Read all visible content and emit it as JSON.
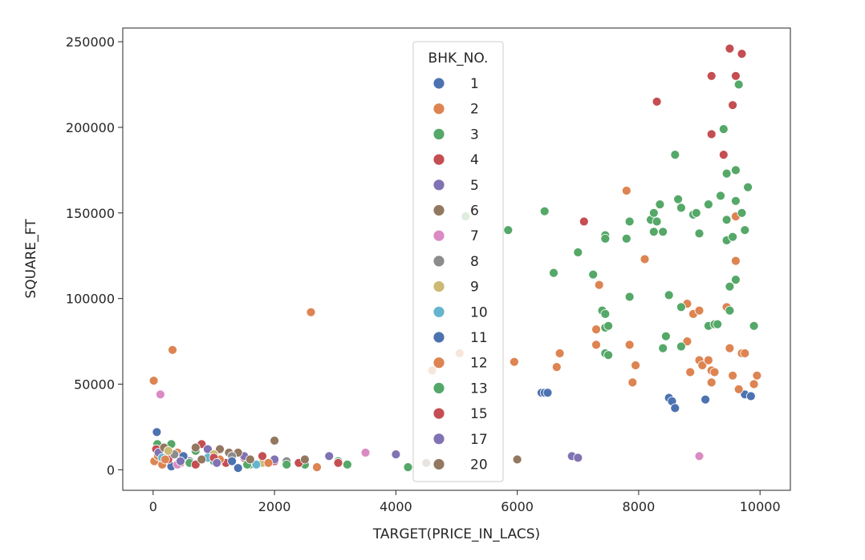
{
  "chart_data": {
    "type": "scatter",
    "xlabel": "TARGET(PRICE_IN_LACS)",
    "ylabel": "SQUARE_FT",
    "xlim": [
      -500,
      10500
    ],
    "ylim": [
      -12000,
      258000
    ],
    "xticks": [
      0,
      2000,
      4000,
      6000,
      8000,
      10000
    ],
    "xtick_labels": [
      "0",
      "2000",
      "4000",
      "6000",
      "8000",
      "10000"
    ],
    "yticks": [
      0,
      50000,
      100000,
      150000,
      200000,
      250000
    ],
    "ytick_labels": [
      "0",
      "50000",
      "100000",
      "150000",
      "200000",
      "250000"
    ],
    "grid": false,
    "legend": {
      "title": "BHK_NO.",
      "placement": "upper-center"
    },
    "series": [
      {
        "name": "1",
        "color": "#4c72b0",
        "points": [
          [
            60,
            22000
          ],
          [
            6400,
            45000
          ],
          [
            6450,
            45000
          ],
          [
            6500,
            45000
          ],
          [
            8500,
            42000
          ],
          [
            8550,
            40000
          ],
          [
            8600,
            36000
          ],
          [
            9100,
            41000
          ],
          [
            9750,
            44000
          ],
          [
            9850,
            43000
          ],
          [
            1400,
            1000
          ],
          [
            300,
            2000
          ]
        ]
      },
      {
        "name": "2",
        "color": "#dd8452",
        "points": [
          [
            10,
            52000
          ],
          [
            320,
            70000
          ],
          [
            2600,
            92000
          ],
          [
            20,
            5000
          ],
          [
            80,
            8000
          ],
          [
            150,
            3000
          ],
          [
            400,
            10000
          ],
          [
            2700,
            1500
          ],
          [
            4600,
            58000
          ],
          [
            5050,
            68000
          ],
          [
            5950,
            63000
          ],
          [
            6650,
            60000
          ],
          [
            6700,
            68000
          ],
          [
            7300,
            82000
          ],
          [
            7300,
            73000
          ],
          [
            7350,
            108000
          ],
          [
            7800,
            163000
          ],
          [
            7850,
            73000
          ],
          [
            7900,
            51000
          ],
          [
            7950,
            61000
          ],
          [
            8100,
            123000
          ],
          [
            8800,
            97000
          ],
          [
            8800,
            75000
          ],
          [
            8850,
            57000
          ],
          [
            8900,
            91000
          ],
          [
            9000,
            93000
          ],
          [
            9000,
            64000
          ],
          [
            9050,
            61000
          ],
          [
            9150,
            64000
          ],
          [
            9200,
            58000
          ],
          [
            9200,
            51000
          ],
          [
            9250,
            57000
          ],
          [
            9450,
            95000
          ],
          [
            9500,
            71000
          ],
          [
            9550,
            55000
          ],
          [
            9600,
            148000
          ],
          [
            9600,
            122000
          ],
          [
            9650,
            47000
          ],
          [
            9700,
            68000
          ],
          [
            9750,
            68000
          ],
          [
            9900,
            50000
          ],
          [
            9950,
            55000
          ]
        ]
      },
      {
        "name": "3",
        "color": "#55a868",
        "points": [
          [
            70,
            15000
          ],
          [
            300,
            15000
          ],
          [
            500,
            7000
          ],
          [
            700,
            11000
          ],
          [
            1000,
            5000
          ],
          [
            1600,
            3000
          ],
          [
            2500,
            3000
          ],
          [
            3050,
            5000
          ],
          [
            3200,
            3000
          ],
          [
            4200,
            1500
          ],
          [
            5150,
            148000
          ],
          [
            5850,
            140000
          ],
          [
            6450,
            151000
          ],
          [
            6600,
            115000
          ],
          [
            7000,
            127000
          ],
          [
            7250,
            114000
          ],
          [
            7400,
            93000
          ],
          [
            7450,
            91000
          ],
          [
            7450,
            83000
          ],
          [
            7500,
            84000
          ],
          [
            7450,
            68000
          ],
          [
            7500,
            67000
          ],
          [
            7450,
            137000
          ],
          [
            7450,
            135000
          ],
          [
            7800,
            135000
          ],
          [
            7850,
            145000
          ],
          [
            7850,
            101000
          ],
          [
            8200,
            146000
          ],
          [
            8250,
            150000
          ],
          [
            8300,
            145000
          ],
          [
            8350,
            155000
          ],
          [
            8250,
            139000
          ],
          [
            8400,
            139000
          ],
          [
            8400,
            71000
          ],
          [
            8450,
            78000
          ],
          [
            8500,
            102000
          ],
          [
            8600,
            184000
          ],
          [
            8650,
            158000
          ],
          [
            8700,
            153000
          ],
          [
            8700,
            95000
          ],
          [
            8700,
            72000
          ],
          [
            8900,
            149000
          ],
          [
            8950,
            150000
          ],
          [
            9000,
            138000
          ],
          [
            9150,
            155000
          ],
          [
            9150,
            84000
          ],
          [
            9250,
            85000
          ],
          [
            9300,
            85000
          ],
          [
            9350,
            160000
          ],
          [
            9400,
            199000
          ],
          [
            9450,
            173000
          ],
          [
            9450,
            146000
          ],
          [
            9450,
            134000
          ],
          [
            9500,
            107000
          ],
          [
            9500,
            93000
          ],
          [
            9550,
            136000
          ],
          [
            9600,
            157000
          ],
          [
            9600,
            175000
          ],
          [
            9650,
            225000
          ],
          [
            9600,
            111000
          ],
          [
            9700,
            150000
          ],
          [
            9750,
            140000
          ],
          [
            9800,
            165000
          ],
          [
            9900,
            84000
          ]
        ]
      },
      {
        "name": "4",
        "color": "#c44e52",
        "points": [
          [
            50,
            12000
          ],
          [
            250,
            6000
          ],
          [
            450,
            4000
          ],
          [
            800,
            15000
          ],
          [
            1200,
            4000
          ],
          [
            1500,
            7000
          ],
          [
            2000,
            5000
          ],
          [
            2400,
            4000
          ],
          [
            3050,
            4000
          ],
          [
            7100,
            145000
          ],
          [
            8300,
            215000
          ],
          [
            9200,
            230000
          ],
          [
            9200,
            196000
          ],
          [
            9400,
            184000
          ],
          [
            9500,
            246000
          ],
          [
            9550,
            213000
          ],
          [
            9600,
            230000
          ],
          [
            9700,
            243000
          ]
        ]
      },
      {
        "name": "5",
        "color": "#8172b3",
        "points": [
          [
            90,
            10000
          ],
          [
            600,
            5000
          ],
          [
            900,
            12000
          ],
          [
            1500,
            8000
          ],
          [
            2000,
            6000
          ],
          [
            2900,
            8000
          ],
          [
            4000,
            9000
          ],
          [
            6900,
            8000
          ],
          [
            7000,
            7000
          ]
        ]
      },
      {
        "name": "6",
        "color": "#937860",
        "points": [
          [
            180,
            13000
          ],
          [
            700,
            13000
          ],
          [
            1100,
            12000
          ],
          [
            1400,
            10000
          ],
          [
            1250,
            10000
          ],
          [
            2000,
            17000
          ],
          [
            2500,
            6000
          ],
          [
            4500,
            4000
          ],
          [
            6000,
            6000
          ]
        ]
      },
      {
        "name": "7",
        "color": "#da8bc3",
        "points": [
          [
            120,
            44000
          ],
          [
            400,
            3000
          ],
          [
            3500,
            10000
          ],
          [
            9000,
            8000
          ]
        ]
      },
      {
        "name": "8",
        "color": "#8c8c8c",
        "points": [
          [
            350,
            9000
          ],
          [
            1300,
            8000
          ],
          [
            2200,
            5000
          ]
        ]
      },
      {
        "name": "9",
        "color": "#ccb974",
        "points": [
          [
            250,
            11000
          ],
          [
            1000,
            9000
          ],
          [
            1800,
            4000
          ]
        ]
      },
      {
        "name": "10",
        "color": "#64b5cd",
        "points": [
          [
            150,
            7000
          ],
          [
            900,
            7000
          ],
          [
            1700,
            3000
          ]
        ]
      },
      {
        "name": "11",
        "color": "#4c72b0",
        "points": [
          [
            500,
            8000
          ],
          [
            1300,
            5000
          ]
        ]
      },
      {
        "name": "12",
        "color": "#dd8452",
        "points": [
          [
            200,
            6000
          ],
          [
            1100,
            6000
          ],
          [
            1900,
            4000
          ]
        ]
      },
      {
        "name": "13",
        "color": "#55a868",
        "points": [
          [
            600,
            4000
          ],
          [
            1550,
            3000
          ],
          [
            2200,
            3000
          ]
        ]
      },
      {
        "name": "15",
        "color": "#c44e52",
        "points": [
          [
            700,
            3000
          ],
          [
            1000,
            7000
          ],
          [
            1800,
            8000
          ]
        ]
      },
      {
        "name": "17",
        "color": "#8172b3",
        "points": [
          [
            450,
            5000
          ],
          [
            1050,
            4000
          ]
        ]
      },
      {
        "name": "20",
        "color": "#937860",
        "points": [
          [
            800,
            6000
          ],
          [
            1600,
            6000
          ]
        ]
      }
    ]
  }
}
